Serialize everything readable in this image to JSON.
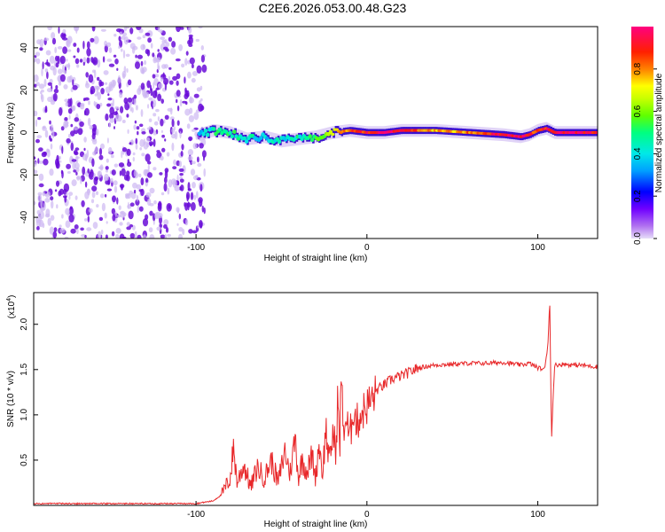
{
  "title": "C2E6.2026.053.00.48.G23",
  "colors": {
    "snr_line": "#e8282a",
    "scatter_dot": "#6a0dd8",
    "scatter_light": "#cdb8f2"
  },
  "chart_data": [
    {
      "type": "heatmap",
      "title": "",
      "xlabel": "Height of straight line (km)",
      "ylabel": "Frequency (Hz)",
      "xlim": [
        -195,
        135
      ],
      "ylim": [
        -50,
        50
      ],
      "xticks": [
        -100,
        0,
        100
      ],
      "xticklabels": [
        "-100",
        "0",
        "100"
      ],
      "yticks": [
        -40,
        -20,
        0,
        20,
        40
      ],
      "yticklabels": [
        "-40",
        "-20",
        "0",
        "20",
        "40"
      ],
      "noise_region_x": [
        -195,
        -95
      ],
      "signal_start_x": -98,
      "ridge": {
        "x": [
          -98,
          -90,
          -80,
          -70,
          -60,
          -50,
          -40,
          -30,
          -20,
          -10,
          0,
          10,
          20,
          40,
          60,
          80,
          90,
          95,
          100,
          105,
          110,
          120,
          135
        ],
        "freq": [
          -1,
          1,
          0,
          -3,
          -2,
          -4,
          -3,
          -2,
          0,
          1,
          0,
          0,
          1,
          1,
          0,
          -1,
          -2,
          -1,
          1,
          2,
          0,
          0,
          0
        ],
        "amplitude": [
          0.35,
          0.45,
          0.5,
          0.45,
          0.4,
          0.4,
          0.45,
          0.5,
          0.7,
          0.85,
          0.9,
          0.95,
          0.95,
          0.75,
          0.8,
          0.95,
          0.95,
          0.9,
          0.85,
          0.9,
          0.95,
          0.95,
          0.9
        ]
      },
      "colorbar": {
        "label": "Normalized spectral amplitude",
        "range": [
          0.0,
          1.0
        ],
        "ticks": [
          0.0,
          0.2,
          0.4,
          0.6,
          0.8
        ],
        "ticklabels": [
          "0.0",
          "0.2",
          "0.4",
          "0.6",
          "0.8"
        ]
      }
    },
    {
      "type": "line",
      "title": "",
      "xlabel": "Height of straight line (km)",
      "ylabel": "SNR (10 * v/v)",
      "yscale_label": "(x10",
      "yscale_exp": "4",
      "yscale_close": ")",
      "xlim": [
        -195,
        135
      ],
      "ylim": [
        0,
        2.35
      ],
      "xticks": [
        -100,
        0,
        100
      ],
      "xticklabels": [
        "-100",
        "0",
        "100"
      ],
      "yticks": [
        0.5,
        1.0,
        1.5,
        2.0
      ],
      "yticklabels": [
        "0.5",
        "1.0",
        "1.5",
        "2.0"
      ],
      "series": [
        {
          "name": "SNR",
          "x": [
            -195,
            -100,
            -90,
            -85,
            -80,
            -78,
            -76,
            -72,
            -68,
            -64,
            -60,
            -56,
            -52,
            -48,
            -45,
            -42,
            -40,
            -38,
            -35,
            -32,
            -30,
            -28,
            -26,
            -24,
            -22,
            -20,
            -18,
            -17,
            -16,
            -15,
            -14,
            -12,
            -10,
            -8,
            -6,
            -4,
            -2,
            0,
            2,
            4,
            6,
            8,
            10,
            15,
            20,
            25,
            30,
            40,
            50,
            60,
            70,
            80,
            90,
            95,
            100,
            104,
            106,
            107,
            108,
            109,
            110,
            115,
            120,
            125,
            130,
            135
          ],
          "y": [
            0.02,
            0.02,
            0.05,
            0.12,
            0.3,
            0.65,
            0.25,
            0.45,
            0.2,
            0.42,
            0.3,
            0.5,
            0.25,
            0.6,
            0.35,
            0.75,
            0.3,
            0.5,
            0.38,
            0.55,
            0.3,
            0.7,
            0.35,
            0.85,
            0.45,
            0.8,
            0.6,
            1.3,
            0.5,
            1.55,
            0.85,
            0.95,
            0.7,
            1.1,
            0.9,
            1.0,
            1.05,
            1.1,
            1.15,
            1.2,
            1.28,
            1.3,
            1.33,
            1.4,
            1.43,
            1.47,
            1.52,
            1.55,
            1.56,
            1.57,
            1.57,
            1.58,
            1.55,
            1.57,
            1.52,
            1.5,
            1.8,
            2.3,
            0.7,
            1.25,
            1.55,
            1.56,
            1.55,
            1.55,
            1.54,
            1.53
          ]
        }
      ]
    }
  ]
}
